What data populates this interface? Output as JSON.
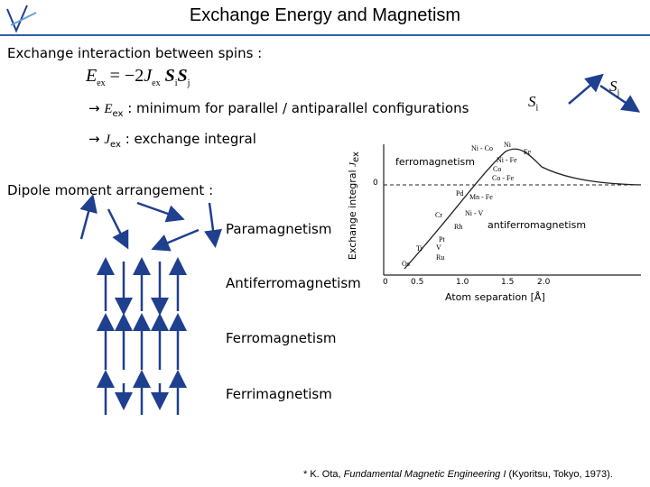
{
  "header": {
    "title": "Exchange Energy and Magnetism"
  },
  "intro": "Exchange interaction between spins :",
  "equation": {
    "e": "E",
    "e_sub": "ex",
    "mid": "= −2",
    "j": "J",
    "j_sub": "ex",
    "s1": "S",
    "s1_sub": "i",
    "s2": "S",
    "s2_sub": "j"
  },
  "bullets": [
    {
      "arrow": "→",
      "symbol": "E",
      "sub": "ex",
      "text": ": minimum for parallel / antiparallel configurations"
    },
    {
      "arrow": "→",
      "symbol": "J",
      "sub": "ex",
      "text": ": exchange integral"
    }
  ],
  "spins": [
    {
      "symbol": "S",
      "sub": "i"
    },
    {
      "symbol": "S",
      "sub": "j"
    }
  ],
  "arrangement_heading": "Dipole moment arrangement :",
  "arrangements": [
    "Paramagnetism",
    "Antiferromagnetism",
    "Ferromagnetism",
    "Ferrimagnetism"
  ],
  "graph": {
    "y_label": "Exchange integral ",
    "y_label_symbol": "J",
    "y_label_sub": "ex",
    "x_label": "Atom separation [Å]",
    "regions": [
      "ferromagnetism",
      "antiferromagnetism"
    ],
    "y_tick": "0",
    "x_ticks": [
      "0",
      "0.5",
      "1.0",
      "1.5",
      "2.0"
    ],
    "points": [
      "Ni - Co",
      "Ni",
      "Fe",
      "Ni - Fe",
      "Co",
      "Co - Fe",
      "Pd",
      "Mn - Fe",
      "Cr",
      "Ni - V",
      "Rh",
      "Ti",
      "V",
      "Pt",
      "Ru",
      "Os"
    ]
  },
  "footnote": {
    "pre": "* K. Ota, ",
    "book": "Fundamental Magnetic Engineering I",
    "post": " (Kyoritsu, Tokyo, 1973)."
  }
}
